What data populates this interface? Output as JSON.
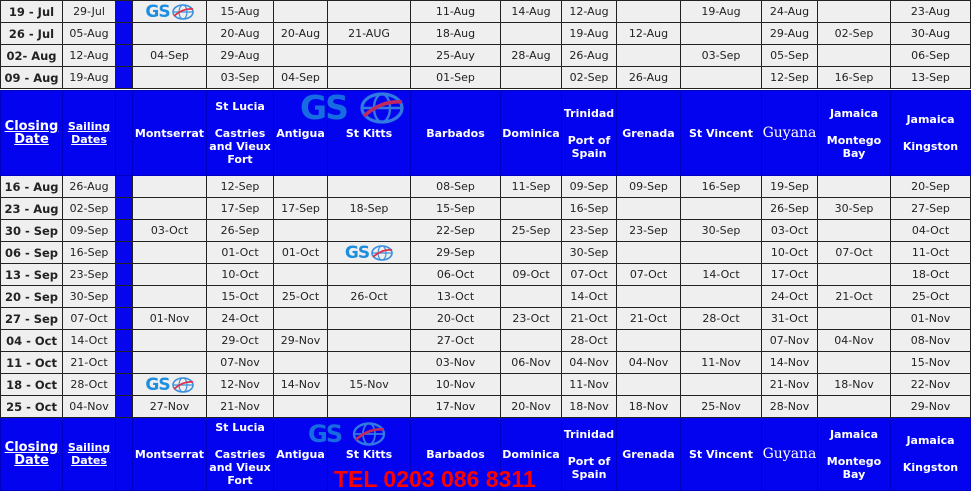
{
  "brand": {
    "logo_text": "GS",
    "accent": "#0303f0",
    "phone_color": "#ff0000"
  },
  "header": {
    "closing": "Closing Date",
    "sailing": "Sailing Dates",
    "columns": [
      {
        "top": "Montserrat"
      },
      {
        "top": "St Lucia",
        "sub": "Castries and Vieux Fort"
      },
      {
        "top": "Antigua"
      },
      {
        "top": "St Kitts"
      },
      {
        "top": "Barbados"
      },
      {
        "top": "Dominica"
      },
      {
        "top": "Trinidad",
        "sub": "Port of Spain"
      },
      {
        "top": "Grenada"
      },
      {
        "top": "St Vincent"
      },
      {
        "top": "Guyana"
      },
      {
        "top": "Jamaica",
        "sub": "Montego Bay"
      },
      {
        "top": "Jamaica",
        "sub": "Kingston"
      }
    ]
  },
  "phone": "TEL 0203 086 8311",
  "rows_top": [
    [
      "19 - Jul",
      "29-Jul",
      {
        "logo": "GS"
      },
      "15-Aug",
      "",
      "",
      "11-Aug",
      "14-Aug",
      "12-Aug",
      "",
      "19-Aug",
      "24-Aug",
      "",
      "23-Aug"
    ],
    [
      "26 - Jul",
      "05-Aug",
      "",
      "20-Aug",
      "20-Aug",
      "21-AUG",
      "18-Aug",
      "",
      "19-Aug",
      "12-Aug",
      "",
      "29-Aug",
      "02-Sep",
      "30-Aug"
    ],
    [
      "02- Aug",
      "12-Aug",
      "04-Sep",
      "29-Aug",
      "",
      "",
      "25-Auy",
      "28-Aug",
      "26-Aug",
      "",
      "03-Sep",
      "05-Sep",
      "",
      "06-Sep"
    ],
    [
      "09 - Aug",
      "19-Aug",
      "",
      "03-Sep",
      "04-Sep",
      "",
      "01-Sep",
      "",
      "02-Sep",
      "26-Aug",
      "",
      "12-Sep",
      "16-Sep",
      "13-Sep"
    ]
  ],
  "rows_bottom": [
    [
      "16 - Aug",
      "26-Aug",
      "",
      "12-Sep",
      "",
      "",
      "08-Sep",
      "11-Sep",
      "09-Sep",
      "09-Sep",
      "16-Sep",
      "19-Sep",
      "",
      "20-Sep"
    ],
    [
      "23 - Aug",
      "02-Sep",
      "",
      "17-Sep",
      "17-Sep",
      "18-Sep",
      "15-Sep",
      "",
      "16-Sep",
      "",
      "",
      "26-Sep",
      "30-Sep",
      "27-Sep"
    ],
    [
      "30 - Sep",
      "09-Sep",
      "03-Oct",
      "26-Sep",
      "",
      "",
      "22-Sep",
      "25-Sep",
      "23-Sep",
      "23-Sep",
      "30-Sep",
      "03-Oct",
      "",
      "04-Oct"
    ],
    [
      "06 - Sep",
      "16-Sep",
      "",
      "01-Oct",
      "01-Oct",
      {
        "logo": "GS"
      },
      "29-Sep",
      "",
      "30-Sep",
      "",
      "",
      "10-Oct",
      "07-Oct",
      "11-Oct"
    ],
    [
      "13 - Sep",
      "23-Sep",
      "",
      "10-Oct",
      "",
      "",
      "06-Oct",
      "09-Oct",
      "07-Oct",
      "07-Oct",
      "14-Oct",
      "17-Oct",
      "",
      "18-Oct"
    ],
    [
      "20 - Sep",
      "30-Sep",
      "",
      "15-Oct",
      "25-Oct",
      "26-Oct",
      "13-Oct",
      "",
      "14-Oct",
      "",
      "",
      "24-Oct",
      "21-Oct",
      "25-Oct"
    ],
    [
      "27 - Sep",
      "07-Oct",
      "01-Nov",
      "24-Oct",
      "",
      "",
      "20-Oct",
      "23-Oct",
      "21-Oct",
      "21-Oct",
      "28-Oct",
      "31-Oct",
      "",
      "01-Nov"
    ],
    [
      "04 - Oct",
      "14-Oct",
      "",
      "29-Oct",
      "29-Nov",
      "",
      "27-Oct",
      "",
      "28-Oct",
      "",
      "",
      "07-Nov",
      "04-Nov",
      "08-Nov"
    ],
    [
      "11 - Oct",
      "21-Oct",
      "",
      "07-Nov",
      "",
      "",
      "03-Nov",
      "06-Nov",
      "04-Nov",
      "04-Nov",
      "11-Nov",
      "14-Nov",
      "",
      "15-Nov"
    ],
    [
      "18 - Oct",
      "28-Oct",
      {
        "logo": "GS"
      },
      "12-Nov",
      "14-Nov",
      "15-Nov",
      "10-Nov",
      "",
      "11-Nov",
      "",
      "",
      "21-Nov",
      "18-Nov",
      "22-Nov"
    ],
    [
      "25 - Oct",
      "04-Nov",
      "27-Nov",
      "21-Nov",
      "",
      "",
      "17-Nov",
      "20-Nov",
      "18-Nov",
      "18-Nov",
      "25-Nov",
      "28-Nov",
      "",
      "29-Nov"
    ]
  ]
}
